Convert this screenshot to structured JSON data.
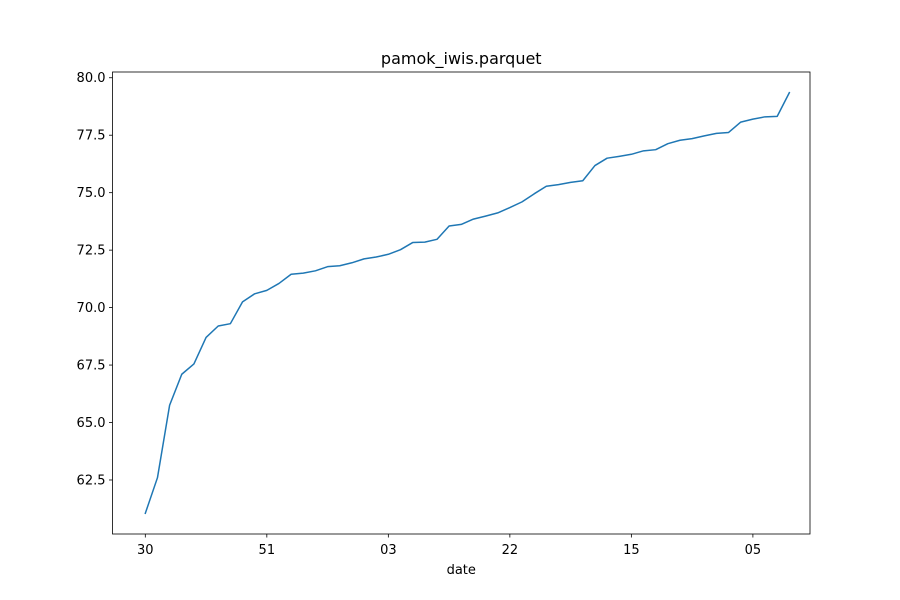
{
  "chart_data": {
    "type": "line",
    "title": "pamok_iwis.parquet",
    "xlabel": "date",
    "ylabel": "",
    "ylim": [
      60.15,
      80.25
    ],
    "xlim": [
      -2.7,
      54.7
    ],
    "grid": false,
    "line_color": "#1f77b4",
    "x_ticks": [
      {
        "pos": 0,
        "label": "30"
      },
      {
        "pos": 10,
        "label": "51"
      },
      {
        "pos": 20,
        "label": "03"
      },
      {
        "pos": 30,
        "label": "22"
      },
      {
        "pos": 40,
        "label": "15"
      },
      {
        "pos": 50,
        "label": "05"
      }
    ],
    "y_ticks": [
      62.5,
      65.0,
      67.5,
      70.0,
      72.5,
      75.0,
      77.5,
      80.0
    ],
    "y_tick_labels": [
      "62.5",
      "65.0",
      "67.5",
      "70.0",
      "72.5",
      "75.0",
      "77.5",
      "80.0"
    ],
    "series": [
      {
        "values": [
          61.05,
          62.6,
          65.75,
          67.1,
          67.55,
          68.7,
          69.2,
          69.3,
          70.25,
          70.6,
          70.75,
          71.05,
          71.45,
          71.5,
          71.6,
          71.78,
          71.82,
          71.95,
          72.12,
          72.2,
          72.32,
          72.52,
          72.83,
          72.85,
          72.97,
          73.55,
          73.62,
          73.85,
          73.98,
          74.12,
          74.35,
          74.6,
          74.95,
          75.28,
          75.35,
          75.45,
          75.52,
          76.18,
          76.5,
          76.58,
          76.67,
          76.82,
          76.87,
          77.13,
          77.28,
          77.35,
          77.47,
          77.58,
          77.62,
          78.07,
          78.2,
          78.3,
          78.32,
          79.35
        ]
      }
    ]
  }
}
